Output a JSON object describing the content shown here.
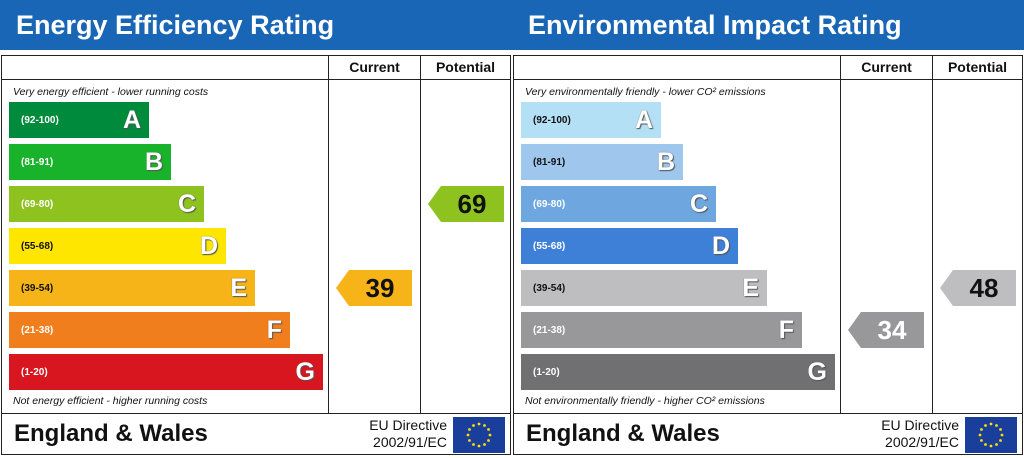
{
  "chart_data": [
    {
      "type": "bar",
      "title": "Energy Efficiency Rating",
      "column_headers": [
        "Current",
        "Potential"
      ],
      "top_note": "Very energy efficient - lower running costs",
      "bottom_note": "Not energy efficient - higher running costs",
      "bands": [
        {
          "letter": "A",
          "range": "(92-100)",
          "color": "#008a3b",
          "range_color": "#ffffff"
        },
        {
          "letter": "B",
          "range": "(81-91)",
          "color": "#19b32b",
          "range_color": "#ffffff"
        },
        {
          "letter": "C",
          "range": "(69-80)",
          "color": "#8dc21f",
          "range_color": "#ffffff"
        },
        {
          "letter": "D",
          "range": "(55-68)",
          "color": "#ffe600",
          "range_color": "#111111"
        },
        {
          "letter": "E",
          "range": "(39-54)",
          "color": "#f7b418",
          "range_color": "#111111"
        },
        {
          "letter": "F",
          "range": "(21-38)",
          "color": "#f07e1c",
          "range_color": "#ffffff"
        },
        {
          "letter": "G",
          "range": "(1-20)",
          "color": "#d7161f",
          "range_color": "#ffffff"
        }
      ],
      "current": {
        "value": "39",
        "band": "E",
        "color": "#f7b418",
        "text_color": "#111111"
      },
      "potential": {
        "value": "69",
        "band": "C",
        "color": "#8dc21f",
        "text_color": "#111111"
      },
      "footer": {
        "region": "England & Wales",
        "directive_line1": "EU Directive",
        "directive_line2": "2002/91/EC"
      }
    },
    {
      "type": "bar",
      "title": "Environmental Impact Rating",
      "column_headers": [
        "Current",
        "Potential"
      ],
      "top_note": "Very environmentally friendly - lower CO² emissions",
      "bottom_note": "Not environmentally friendly - higher CO² emissions",
      "bands": [
        {
          "letter": "A",
          "range": "(92-100)",
          "color": "#b3e0f5",
          "range_color": "#111111"
        },
        {
          "letter": "B",
          "range": "(81-91)",
          "color": "#9fc6ec",
          "range_color": "#111111"
        },
        {
          "letter": "C",
          "range": "(69-80)",
          "color": "#6ea6e0",
          "range_color": "#ffffff"
        },
        {
          "letter": "D",
          "range": "(55-68)",
          "color": "#3e7fd8",
          "range_color": "#ffffff"
        },
        {
          "letter": "E",
          "range": "(39-54)",
          "color": "#bebec0",
          "range_color": "#111111"
        },
        {
          "letter": "F",
          "range": "(21-38)",
          "color": "#98989b",
          "range_color": "#ffffff"
        },
        {
          "letter": "G",
          "range": "(1-20)",
          "color": "#707073",
          "range_color": "#ffffff"
        }
      ],
      "current": {
        "value": "34",
        "band": "F",
        "color": "#98989b",
        "text_color": "#ffffff"
      },
      "potential": {
        "value": "48",
        "band": "E",
        "color": "#bebec0",
        "text_color": "#111111"
      },
      "footer": {
        "region": "England & Wales",
        "directive_line1": "EU Directive",
        "directive_line2": "2002/91/EC"
      }
    }
  ]
}
